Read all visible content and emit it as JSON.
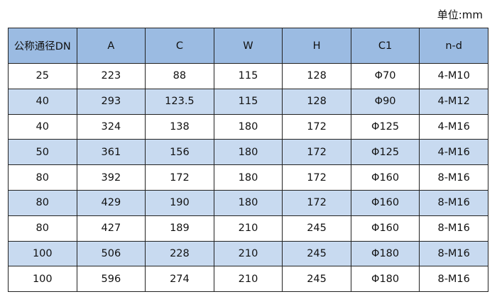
{
  "unit_label": "单位:mm",
  "colors": {
    "header_bg": "#9bbbe2",
    "alt_row_bg": "#c8daf0"
  },
  "table": {
    "headers": [
      "公称通径DN",
      "A",
      "C",
      "W",
      "H",
      "C1",
      "n-d"
    ],
    "rows": [
      [
        "25",
        "223",
        "88",
        "115",
        "128",
        "Φ70",
        "4-M10"
      ],
      [
        "40",
        "293",
        "123.5",
        "115",
        "128",
        "Φ90",
        "4-M12"
      ],
      [
        "40",
        "324",
        "138",
        "180",
        "172",
        "Φ125",
        "4-M16"
      ],
      [
        "50",
        "361",
        "156",
        "180",
        "172",
        "Φ125",
        "4-M16"
      ],
      [
        "80",
        "392",
        "172",
        "180",
        "172",
        "Φ160",
        "8-M16"
      ],
      [
        "80",
        "429",
        "190",
        "180",
        "172",
        "Φ160",
        "8-M16"
      ],
      [
        "80",
        "427",
        "189",
        "210",
        "245",
        "Φ160",
        "8-M16"
      ],
      [
        "100",
        "506",
        "228",
        "210",
        "245",
        "Φ180",
        "8-M16"
      ],
      [
        "100",
        "596",
        "274",
        "210",
        "245",
        "Φ180",
        "8-M16"
      ]
    ]
  }
}
